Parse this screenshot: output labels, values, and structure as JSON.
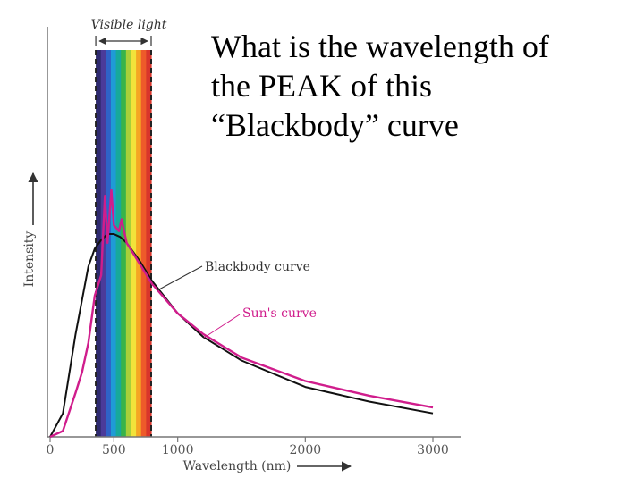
{
  "slide": {
    "question": "What is the wavelength of\nthe PEAK of this\n“Blackbody” curve"
  },
  "chart_data": {
    "type": "line",
    "title": "",
    "xlabel": "Wavelength (nm)",
    "ylabel": "Intensity",
    "xlim": [
      0,
      3200
    ],
    "ylim": [
      0,
      100
    ],
    "x_ticks": [
      0,
      500,
      1000,
      2000,
      3000
    ],
    "x_tick_labels": [
      "0",
      "500",
      "1000",
      "2000",
      "3000"
    ],
    "visible_band": {
      "label": "Visible light",
      "start": 400,
      "end": 750
    },
    "spectrum_colors": [
      "#2e2a6e",
      "#4b3b9a",
      "#2f63c8",
      "#1f9bd6",
      "#17a99a",
      "#38b34a",
      "#a8cf3a",
      "#f2e33a",
      "#f5a623",
      "#ee5b2a",
      "#d9362b"
    ],
    "series": [
      {
        "name": "Blackbody curve",
        "color": "#111111",
        "x": [
          0,
          100,
          200,
          300,
          350,
          400,
          450,
          500,
          550,
          600,
          700,
          800,
          1000,
          1200,
          1500,
          2000,
          2500,
          3000
        ],
        "y": [
          0,
          8,
          35,
          58,
          64,
          67,
          69,
          69,
          68,
          66,
          60,
          53,
          42,
          34,
          26,
          17,
          12,
          8
        ]
      },
      {
        "name": "Sun's curve",
        "color": "#d01d8c",
        "x": [
          0,
          100,
          200,
          250,
          300,
          350,
          400,
          430,
          450,
          480,
          500,
          540,
          560,
          600,
          700,
          800,
          1000,
          1200,
          1500,
          2000,
          2500,
          3000
        ],
        "y": [
          0,
          2,
          15,
          22,
          32,
          48,
          55,
          82,
          66,
          84,
          72,
          70,
          74,
          66,
          59,
          52,
          42,
          35,
          27,
          19,
          14,
          10
        ]
      }
    ],
    "annotations": [
      "Blackbody curve",
      "Sun's curve"
    ]
  }
}
